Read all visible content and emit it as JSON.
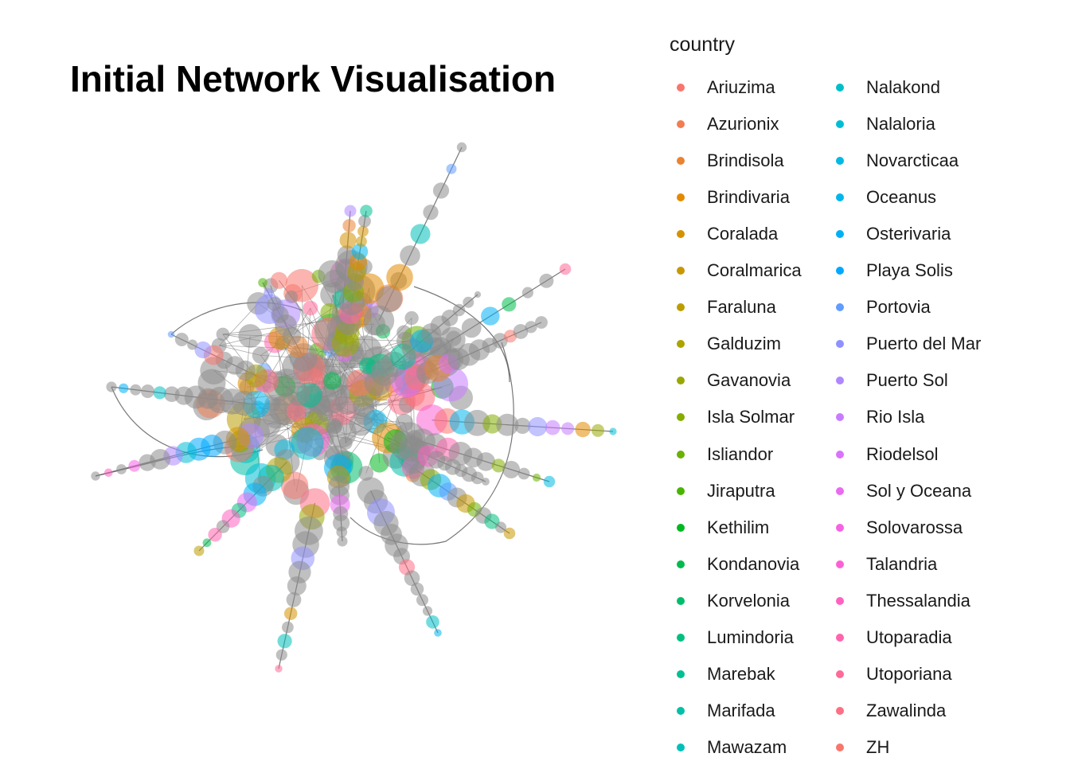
{
  "title": "Initial Network Visualisation",
  "legend": {
    "title": "country",
    "entries": [
      {
        "label": "Ariuzima",
        "color": "#F8766D"
      },
      {
        "label": "Azurionix",
        "color": "#F27D52"
      },
      {
        "label": "Brindisola",
        "color": "#EA8331"
      },
      {
        "label": "Brindivaria",
        "color": "#E18A00"
      },
      {
        "label": "Coralada",
        "color": "#D69100"
      },
      {
        "label": "Coralmarica",
        "color": "#C99800"
      },
      {
        "label": "Faraluna",
        "color": "#BB9D00"
      },
      {
        "label": "Galduzim",
        "color": "#ABA300"
      },
      {
        "label": "Gavanovia",
        "color": "#99A800"
      },
      {
        "label": "Isla Solmar",
        "color": "#84AD00"
      },
      {
        "label": "Isliandor",
        "color": "#6BB100"
      },
      {
        "label": "Jiraputra",
        "color": "#49B500"
      },
      {
        "label": "Kethilim",
        "color": "#00B81F"
      },
      {
        "label": "Kondanovia",
        "color": "#00BB4E"
      },
      {
        "label": "Korvelonia",
        "color": "#00BD6A"
      },
      {
        "label": "Lumindoria",
        "color": "#00BF80"
      },
      {
        "label": "Marebak",
        "color": "#00C094"
      },
      {
        "label": "Marifada",
        "color": "#00C0A7"
      },
      {
        "label": "Mawazam",
        "color": "#00C0B8"
      },
      {
        "label": "Nalakond",
        "color": "#00BFC8"
      },
      {
        "label": "Nalaloria",
        "color": "#00BDD6"
      },
      {
        "label": "Novarcticaa",
        "color": "#00BAE2"
      },
      {
        "label": "Oceanus",
        "color": "#00B6EC"
      },
      {
        "label": "Osterivaria",
        "color": "#00B0F6"
      },
      {
        "label": "Playa Solis",
        "color": "#00A9FF"
      },
      {
        "label": "Portovia",
        "color": "#619CFF"
      },
      {
        "label": "Puerto del Mar",
        "color": "#8F91FF"
      },
      {
        "label": "Puerto Sol",
        "color": "#AE87FF"
      },
      {
        "label": "Rio Isla",
        "color": "#C77CFF"
      },
      {
        "label": "Riodelsol",
        "color": "#DB72FB"
      },
      {
        "label": "Sol y Oceana",
        "color": "#EA6AF1"
      },
      {
        "label": "Solovarossa",
        "color": "#F563E3"
      },
      {
        "label": "Talandria",
        "color": "#FC61D3"
      },
      {
        "label": "Thessalandia",
        "color": "#FF61C1"
      },
      {
        "label": "Utoparadia",
        "color": "#FF64AD"
      },
      {
        "label": "Utoporiana",
        "color": "#FF6A98"
      },
      {
        "label": "Zawalinda",
        "color": "#FD6F85"
      },
      {
        "label": "ZH",
        "color": "#F8766D"
      }
    ]
  },
  "network": {
    "edge_color": "#555555",
    "unassigned_node_color": "#8C8C8C"
  }
}
